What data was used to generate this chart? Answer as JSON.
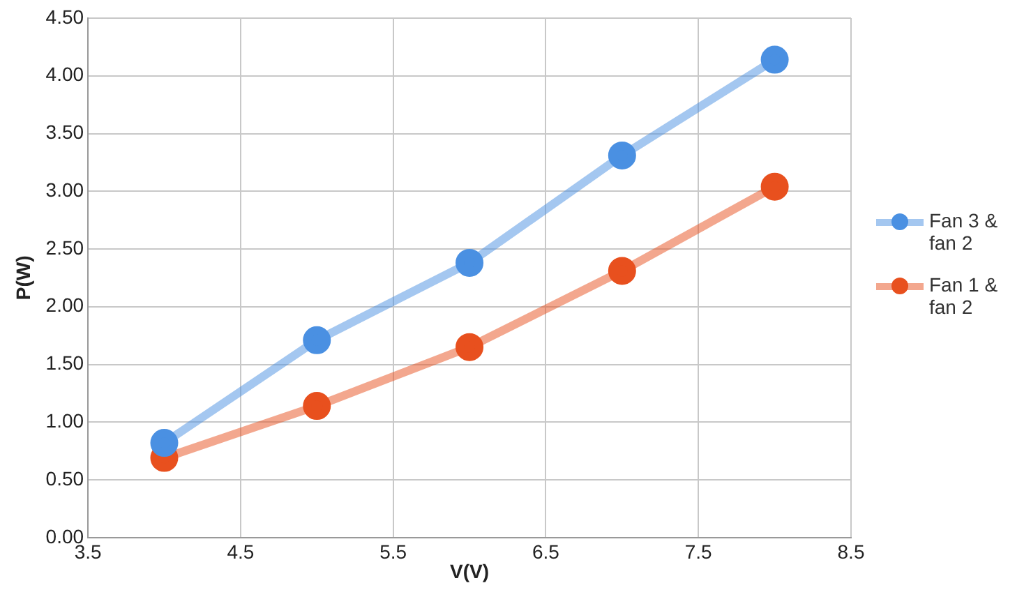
{
  "chart_data": {
    "type": "line",
    "xlabel": "V(V)",
    "ylabel": "P(W)",
    "x": [
      4,
      5,
      6,
      7,
      8
    ],
    "series": [
      {
        "name": "Fan 3 & fan 2",
        "color": "#4a90e2",
        "values": [
          0.82,
          1.71,
          2.38,
          3.31,
          4.14
        ]
      },
      {
        "name": "Fan 1 & fan 2",
        "color": "#e8501e",
        "values": [
          0.69,
          1.14,
          1.65,
          2.31,
          3.04
        ]
      }
    ],
    "xlim": [
      3.5,
      8.5
    ],
    "xticks": [
      3.5,
      4.5,
      5.5,
      6.5,
      7.5,
      8.5
    ],
    "ylim": [
      0,
      4.5
    ],
    "yticks": [
      {
        "value": 0,
        "label": "0.00"
      },
      {
        "value": 0.5,
        "label": "0.50"
      },
      {
        "value": 1,
        "label": "1.00"
      },
      {
        "value": 1.5,
        "label": "1.50"
      },
      {
        "value": 2,
        "label": "2.00"
      },
      {
        "value": 2.5,
        "label": "2.50"
      },
      {
        "value": 3,
        "label": "3.00"
      },
      {
        "value": 3.5,
        "label": "3.50"
      },
      {
        "value": 4,
        "label": "4.00"
      },
      {
        "value": 4.5,
        "label": "4.50"
      }
    ],
    "grid": true,
    "legend": "right",
    "marker": "circle",
    "line_style": "solid"
  }
}
